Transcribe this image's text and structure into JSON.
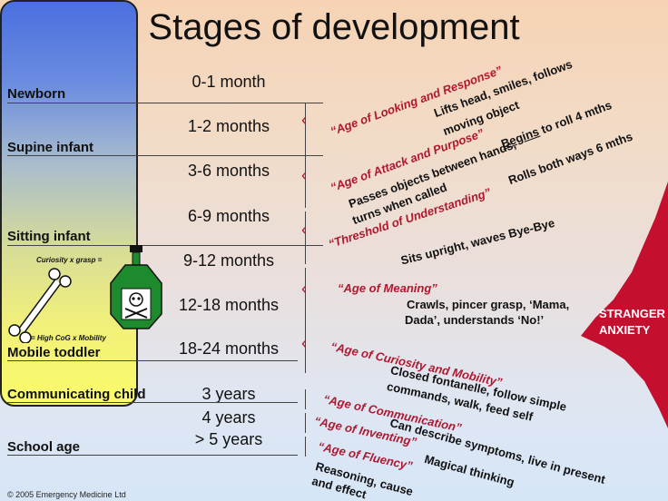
{
  "title": "Stages of development",
  "ages": [
    "0-1 month",
    "1-2 months",
    "3-6 months",
    "6-9 months",
    "9-12 months",
    "12-18 months",
    "18-24 months",
    "3 years",
    "4 years",
    "> 5 years"
  ],
  "stages": {
    "newborn": "Newborn",
    "supine": "Supine infant",
    "sitting": "Sitting infant",
    "mobile": "Mobile toddler",
    "communicating": "Communicating child",
    "school": "School age"
  },
  "bottle": {
    "top_label": "Curiosity x grasp =",
    "bottom_label": "= High CoG x Mobility"
  },
  "ages_phrases": {
    "looking": "“Age of Looking and Response”",
    "attack": "“Age of Attack and Purpose”",
    "threshold": "“Threshold of Understanding”",
    "meaning": "“Age of Meaning”",
    "curiosity": "“Age of Curiosity and Mobility”",
    "communication": "“Age of Communication”",
    "inventing": "“Age of Inventing”",
    "fluency": "“Age of Fluency”"
  },
  "milestones": {
    "lifts": "Lifts head, smiles, follows",
    "moving": "moving object",
    "begins": "Begins",
    "roll4": " to roll 4 mths",
    "passes": "Passes objects between hands,",
    "turns": "turns when called",
    "rolls": "Rolls both ways 6 mths",
    "sits": "Sits upright, waves Bye-Bye",
    "crawls": "Crawls, pincer grasp, ‘Mama,",
    "dada": "Dada’, understands ‘No!’",
    "closed": "Closed fontanelle, follow simple",
    "commands": "commands, walk, feed self",
    "can": "Can describe symptoms, live in present",
    "magical": "Magical thinking",
    "reasoning": "Reasoning, cause",
    "effect": "and effect"
  },
  "stranger_anxiety": [
    "STRANGER",
    "ANXIETY"
  ],
  "footer": "© 2005 Emergency Medicine Ltd",
  "colors": {
    "accent_red": "#b01830",
    "bar_top": "#4b6fe0",
    "bar_bottom": "#fbfb6a",
    "bottle_green": "#1e8a2e",
    "stranger_red": "#c4102e"
  }
}
